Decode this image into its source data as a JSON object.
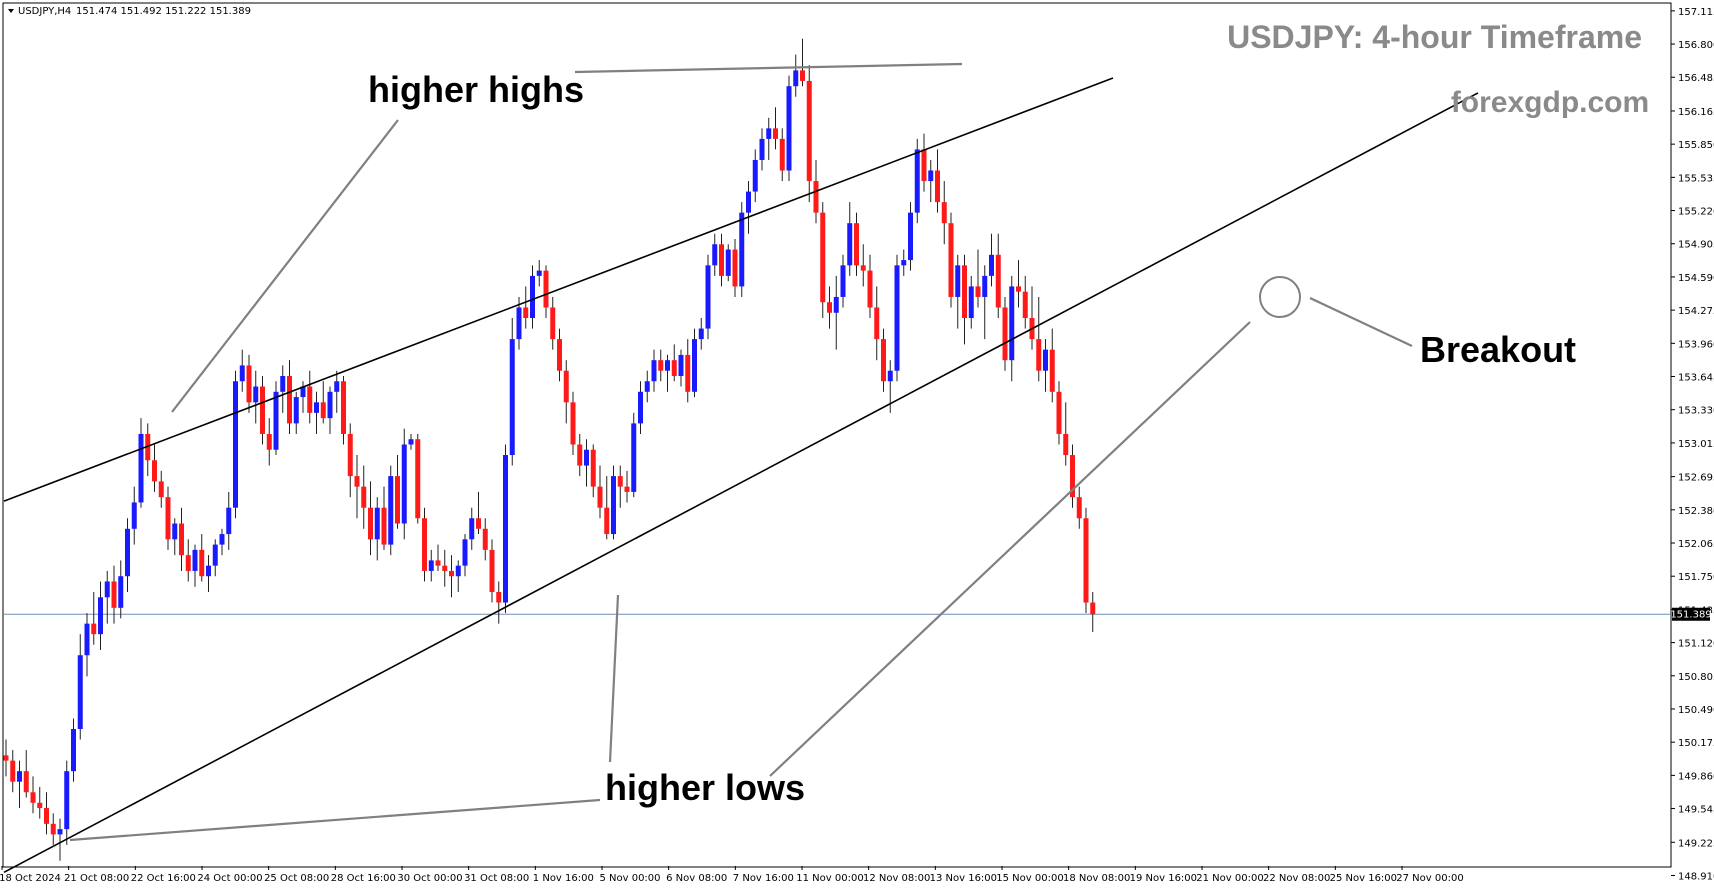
{
  "header": {
    "symbol_text": "USDJPY,H4",
    "ohlc_text": "151.474 151.492 151.222 151.389"
  },
  "title": "USDJPY: 4-hour Timeframe",
  "website": "forexgdp.com",
  "annotations": {
    "higher_highs": "higher highs",
    "higher_lows": "higher lows",
    "breakout": "Breakout"
  },
  "colors": {
    "bull": "#1a1aff",
    "bear": "#ff1a1a",
    "wick": "#202020",
    "trendline": "#000000",
    "pointer": "#808080",
    "current_price_line": "#6b8fb5",
    "text_gray": "#8a8a8a"
  },
  "current_price": {
    "label": "151.389",
    "value": 151.389
  },
  "chart_data": {
    "type": "candlestick",
    "symbol": "USDJPY",
    "timeframe": "H4",
    "y_axis": {
      "min": 149.0,
      "max": 157.18,
      "ticks": [
        "157.115",
        "156.800",
        "156.485",
        "156.165",
        "155.850",
        "155.535",
        "155.220",
        "154.905",
        "154.590",
        "154.275",
        "153.960",
        "153.645",
        "153.330",
        "153.015",
        "152.695",
        "152.380",
        "152.065",
        "151.750",
        "151.435",
        "151.120",
        "150.805",
        "150.490",
        "150.175",
        "149.860",
        "149.545",
        "149.225",
        "148.910"
      ]
    },
    "x_axis_labels": [
      "18 Oct 2024",
      "21 Oct 08:00",
      "22 Oct 16:00",
      "24 Oct 00:00",
      "25 Oct 08:00",
      "28 Oct 16:00",
      "30 Oct 00:00",
      "31 Oct 08:00",
      "1 Nov 16:00",
      "5 Nov 00:00",
      "6 Nov 08:00",
      "7 Nov 16:00",
      "11 Nov 00:00",
      "12 Nov 08:00",
      "13 Nov 16:00",
      "15 Nov 00:00",
      "18 Nov 08:00",
      "19 Nov 16:00",
      "21 Nov 00:00",
      "22 Nov 08:00",
      "25 Nov 16:00",
      "27 Nov 00:00"
    ],
    "candles": [
      [
        150.05,
        150.2,
        149.85,
        150.0
      ],
      [
        150.0,
        150.1,
        149.7,
        149.8
      ],
      [
        149.8,
        150.0,
        149.55,
        149.9
      ],
      [
        149.9,
        150.1,
        149.65,
        149.7
      ],
      [
        149.7,
        149.85,
        149.5,
        149.6
      ],
      [
        149.6,
        149.75,
        149.45,
        149.55
      ],
      [
        149.55,
        149.7,
        149.3,
        149.4
      ],
      [
        149.4,
        149.5,
        149.2,
        149.3
      ],
      [
        149.3,
        149.45,
        149.05,
        149.35
      ],
      [
        149.35,
        150.0,
        149.2,
        149.9
      ],
      [
        149.9,
        150.4,
        149.8,
        150.3
      ],
      [
        150.3,
        151.2,
        150.2,
        151.0
      ],
      [
        151.0,
        151.4,
        150.8,
        151.3
      ],
      [
        151.3,
        151.6,
        151.1,
        151.2
      ],
      [
        151.2,
        151.7,
        151.05,
        151.55
      ],
      [
        151.55,
        151.8,
        151.3,
        151.7
      ],
      [
        151.7,
        151.85,
        151.3,
        151.45
      ],
      [
        151.45,
        151.9,
        151.35,
        151.75
      ],
      [
        151.75,
        152.3,
        151.6,
        152.2
      ],
      [
        152.2,
        152.6,
        152.05,
        152.45
      ],
      [
        152.45,
        153.25,
        152.4,
        153.1
      ],
      [
        153.1,
        153.2,
        152.7,
        152.85
      ],
      [
        152.85,
        153.0,
        152.55,
        152.65
      ],
      [
        152.65,
        152.75,
        152.4,
        152.5
      ],
      [
        152.5,
        152.6,
        152.0,
        152.1
      ],
      [
        152.1,
        152.3,
        151.95,
        152.25
      ],
      [
        152.25,
        152.4,
        151.8,
        151.95
      ],
      [
        151.95,
        152.1,
        151.7,
        151.8
      ],
      [
        151.8,
        152.05,
        151.65,
        152.0
      ],
      [
        152.0,
        152.15,
        151.7,
        151.75
      ],
      [
        151.75,
        151.95,
        151.6,
        151.85
      ],
      [
        151.85,
        152.1,
        151.75,
        152.05
      ],
      [
        152.05,
        152.2,
        151.95,
        152.15
      ],
      [
        152.15,
        152.55,
        152.0,
        152.4
      ],
      [
        152.4,
        153.7,
        152.3,
        153.6
      ],
      [
        153.6,
        153.9,
        153.5,
        153.75
      ],
      [
        153.75,
        153.85,
        153.3,
        153.4
      ],
      [
        153.4,
        153.7,
        153.2,
        153.55
      ],
      [
        153.55,
        153.65,
        153.0,
        153.1
      ],
      [
        153.1,
        153.25,
        152.8,
        152.95
      ],
      [
        152.95,
        153.6,
        152.9,
        153.5
      ],
      [
        153.5,
        153.75,
        153.3,
        153.65
      ],
      [
        153.65,
        153.8,
        153.1,
        153.2
      ],
      [
        153.2,
        153.5,
        153.1,
        153.45
      ],
      [
        153.45,
        153.6,
        153.3,
        153.55
      ],
      [
        153.55,
        153.7,
        153.2,
        153.3
      ],
      [
        153.3,
        153.5,
        153.1,
        153.4
      ],
      [
        153.4,
        153.6,
        153.2,
        153.25
      ],
      [
        153.25,
        153.55,
        153.1,
        153.5
      ],
      [
        153.5,
        153.7,
        153.3,
        153.6
      ],
      [
        153.6,
        153.65,
        153.0,
        153.1
      ],
      [
        153.1,
        153.2,
        152.5,
        152.7
      ],
      [
        152.7,
        152.9,
        152.3,
        152.6
      ],
      [
        152.6,
        152.8,
        152.2,
        152.4
      ],
      [
        152.4,
        152.65,
        151.95,
        152.1
      ],
      [
        152.1,
        152.5,
        151.9,
        152.4
      ],
      [
        152.4,
        152.6,
        152.0,
        152.05
      ],
      [
        152.05,
        152.8,
        151.95,
        152.7
      ],
      [
        152.7,
        152.9,
        152.2,
        152.25
      ],
      [
        152.25,
        153.15,
        152.1,
        153.0
      ],
      [
        153.0,
        153.1,
        152.95,
        153.05
      ],
      [
        153.05,
        153.1,
        152.25,
        152.3
      ],
      [
        152.3,
        152.4,
        151.7,
        151.8
      ],
      [
        151.8,
        152.0,
        151.7,
        151.9
      ],
      [
        151.9,
        152.05,
        151.8,
        151.85
      ],
      [
        151.85,
        152.0,
        151.65,
        151.8
      ],
      [
        151.8,
        151.95,
        151.55,
        151.75
      ],
      [
        151.75,
        151.9,
        151.6,
        151.85
      ],
      [
        151.85,
        152.15,
        151.75,
        152.1
      ],
      [
        152.1,
        152.4,
        152.0,
        152.3
      ],
      [
        152.3,
        152.55,
        152.15,
        152.2
      ],
      [
        152.2,
        152.3,
        151.9,
        152.0
      ],
      [
        152.0,
        152.1,
        151.5,
        151.6
      ],
      [
        151.6,
        151.7,
        151.3,
        151.5
      ],
      [
        151.5,
        153.0,
        151.4,
        152.9
      ],
      [
        152.9,
        154.2,
        152.8,
        154.0
      ],
      [
        154.0,
        154.4,
        153.9,
        154.3
      ],
      [
        154.3,
        154.5,
        154.1,
        154.2
      ],
      [
        154.2,
        154.7,
        154.1,
        154.6
      ],
      [
        154.6,
        154.75,
        154.5,
        154.65
      ],
      [
        154.65,
        154.7,
        154.2,
        154.3
      ],
      [
        154.3,
        154.4,
        153.9,
        154.0
      ],
      [
        154.0,
        154.1,
        153.6,
        153.7
      ],
      [
        153.7,
        153.8,
        153.2,
        153.4
      ],
      [
        153.4,
        153.5,
        152.9,
        153.0
      ],
      [
        153.0,
        153.1,
        152.7,
        152.8
      ],
      [
        152.8,
        153.05,
        152.6,
        152.95
      ],
      [
        152.95,
        153.0,
        152.5,
        152.6
      ],
      [
        152.6,
        152.8,
        152.3,
        152.4
      ],
      [
        152.4,
        152.7,
        152.1,
        152.15
      ],
      [
        152.15,
        152.8,
        152.1,
        152.7
      ],
      [
        152.7,
        152.8,
        152.4,
        152.6
      ],
      [
        152.6,
        152.75,
        152.45,
        152.55
      ],
      [
        152.55,
        153.3,
        152.5,
        153.2
      ],
      [
        153.2,
        153.6,
        153.1,
        153.5
      ],
      [
        153.5,
        153.7,
        153.4,
        153.6
      ],
      [
        153.6,
        153.9,
        153.5,
        153.8
      ],
      [
        153.8,
        153.9,
        153.6,
        153.7
      ],
      [
        153.7,
        153.85,
        153.5,
        153.8
      ],
      [
        153.8,
        153.95,
        153.6,
        153.65
      ],
      [
        153.65,
        153.9,
        153.55,
        153.85
      ],
      [
        153.85,
        154.0,
        153.4,
        153.5
      ],
      [
        153.5,
        154.1,
        153.45,
        154.0
      ],
      [
        154.0,
        154.2,
        153.9,
        154.1
      ],
      [
        154.1,
        154.8,
        154.0,
        154.7
      ],
      [
        154.7,
        155.0,
        154.6,
        154.9
      ],
      [
        154.9,
        155.0,
        154.5,
        154.6
      ],
      [
        154.6,
        154.9,
        154.55,
        154.85
      ],
      [
        154.85,
        154.95,
        154.4,
        154.5
      ],
      [
        154.5,
        155.3,
        154.4,
        155.2
      ],
      [
        155.2,
        155.5,
        155.0,
        155.4
      ],
      [
        155.4,
        155.8,
        155.3,
        155.7
      ],
      [
        155.7,
        156.0,
        155.6,
        155.9
      ],
      [
        155.9,
        156.1,
        155.7,
        156.0
      ],
      [
        156.0,
        156.2,
        155.8,
        155.9
      ],
      [
        155.9,
        156.0,
        155.5,
        155.6
      ],
      [
        155.6,
        156.5,
        155.5,
        156.4
      ],
      [
        156.4,
        156.7,
        156.3,
        156.55
      ],
      [
        156.55,
        156.85,
        156.4,
        156.45
      ],
      [
        156.45,
        156.6,
        155.3,
        155.5
      ],
      [
        155.5,
        155.7,
        155.1,
        155.2
      ],
      [
        155.2,
        155.3,
        154.2,
        154.35
      ],
      [
        154.35,
        154.5,
        154.1,
        154.25
      ],
      [
        154.25,
        154.6,
        153.9,
        154.4
      ],
      [
        154.4,
        154.8,
        154.3,
        154.7
      ],
      [
        154.7,
        155.3,
        154.6,
        155.1
      ],
      [
        155.1,
        155.2,
        154.6,
        154.7
      ],
      [
        154.7,
        154.9,
        154.5,
        154.65
      ],
      [
        154.65,
        154.8,
        154.2,
        154.3
      ],
      [
        154.3,
        154.5,
        153.8,
        154.0
      ],
      [
        154.0,
        154.1,
        153.5,
        153.6
      ],
      [
        153.6,
        153.8,
        153.3,
        153.7
      ],
      [
        153.7,
        154.8,
        153.6,
        154.7
      ],
      [
        154.7,
        154.85,
        154.6,
        154.75
      ],
      [
        154.75,
        155.3,
        154.65,
        155.2
      ],
      [
        155.2,
        155.9,
        155.1,
        155.8
      ],
      [
        155.8,
        155.95,
        155.4,
        155.5
      ],
      [
        155.5,
        155.7,
        155.3,
        155.6
      ],
      [
        155.6,
        155.8,
        155.2,
        155.3
      ],
      [
        155.3,
        155.5,
        154.9,
        155.1
      ],
      [
        155.1,
        155.2,
        154.3,
        154.4
      ],
      [
        154.4,
        154.8,
        154.1,
        154.7
      ],
      [
        154.7,
        154.8,
        153.95,
        154.2
      ],
      [
        154.2,
        154.6,
        154.1,
        154.5
      ],
      [
        154.5,
        154.85,
        154.3,
        154.4
      ],
      [
        154.4,
        154.7,
        154.0,
        154.6
      ],
      [
        154.6,
        155.0,
        154.5,
        154.8
      ],
      [
        154.8,
        155.0,
        154.2,
        154.3
      ],
      [
        154.3,
        154.4,
        153.7,
        153.8
      ],
      [
        153.8,
        154.6,
        153.6,
        154.5
      ],
      [
        154.5,
        154.75,
        154.3,
        154.45
      ],
      [
        154.45,
        154.6,
        154.1,
        154.2
      ],
      [
        154.2,
        154.5,
        153.9,
        154.0
      ],
      [
        154.0,
        154.4,
        153.6,
        153.7
      ],
      [
        153.7,
        154.0,
        153.5,
        153.9
      ],
      [
        153.9,
        154.1,
        153.4,
        153.5
      ],
      [
        153.5,
        153.6,
        153.0,
        153.1
      ],
      [
        153.1,
        153.4,
        152.8,
        152.9
      ],
      [
        152.9,
        153.0,
        152.4,
        152.5
      ],
      [
        152.5,
        152.6,
        152.2,
        152.3
      ],
      [
        152.3,
        152.4,
        151.4,
        151.5
      ],
      [
        151.5,
        151.6,
        151.22,
        151.389
      ]
    ],
    "channel": {
      "upper_line": [
        [
          0,
          152.47
        ],
        [
          169,
          156.6
        ]
      ],
      "lower_line": [
        [
          0,
          148.95
        ],
        [
          186,
          155.25
        ]
      ]
    }
  }
}
